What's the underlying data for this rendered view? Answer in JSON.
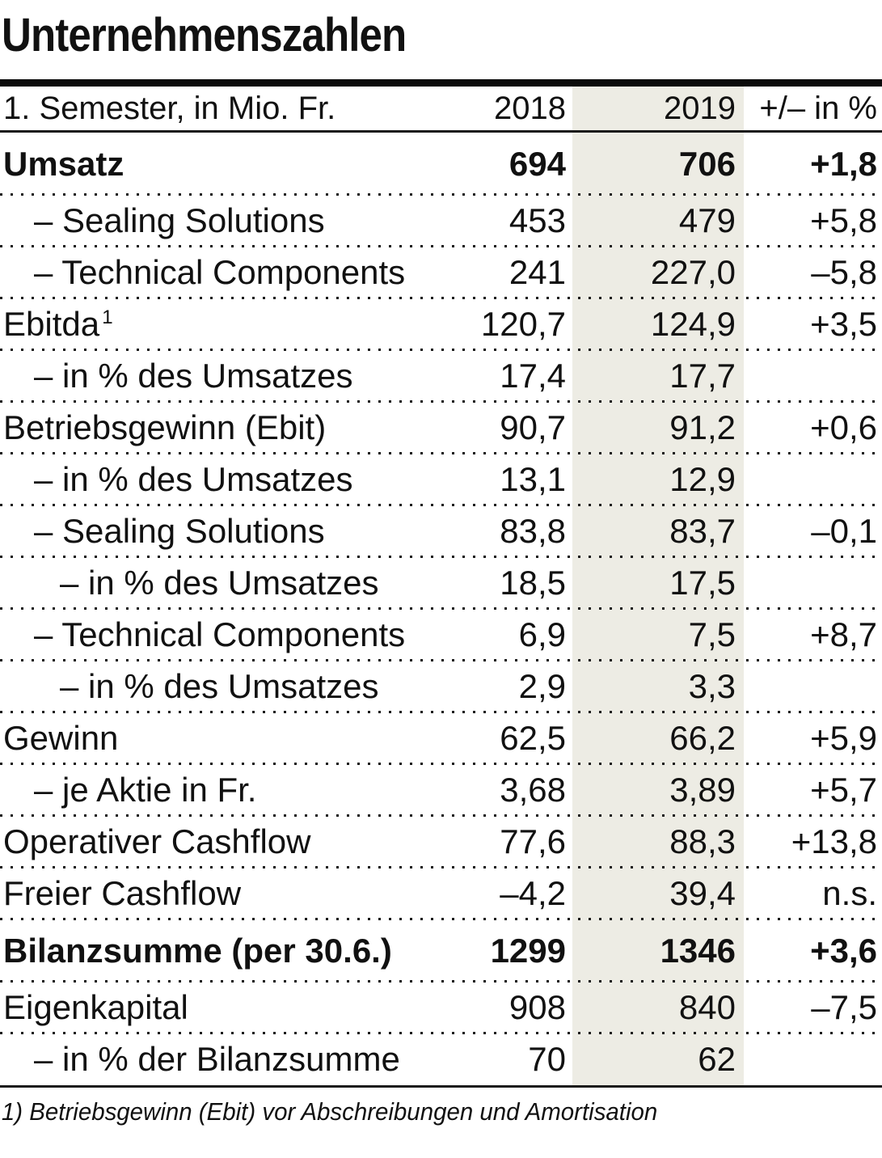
{
  "chart_data": {
    "type": "table",
    "title": "Unternehmenszahlen",
    "header": {
      "label": "1. Semester, in Mio. Fr.",
      "y2018": "2018",
      "y2019": "2019",
      "change": "+/– in %"
    },
    "rows": [
      {
        "label": "Umsatz",
        "indent": 0,
        "bold": true,
        "v2018": "694",
        "v2019": "706",
        "change": "+1,8"
      },
      {
        "label": "– Sealing Solutions",
        "indent": 1,
        "bold": false,
        "v2018": "453",
        "v2019": "479",
        "change": "+5,8"
      },
      {
        "label": "– Technical Components",
        "indent": 1,
        "bold": false,
        "v2018": "241",
        "v2019": "227,0",
        "change": "–5,8"
      },
      {
        "label": "Ebitda",
        "sup": "1",
        "indent": 0,
        "bold": false,
        "v2018": "120,7",
        "v2019": "124,9",
        "change": "+3,5"
      },
      {
        "label": "– in % des Umsatzes",
        "indent": 1,
        "bold": false,
        "v2018": "17,4",
        "v2019": "17,7",
        "change": ""
      },
      {
        "label": "Betriebsgewinn (Ebit)",
        "indent": 0,
        "bold": false,
        "v2018": "90,7",
        "v2019": "91,2",
        "change": "+0,6"
      },
      {
        "label": "– in % des Umsatzes",
        "indent": 1,
        "bold": false,
        "v2018": "13,1",
        "v2019": "12,9",
        "change": ""
      },
      {
        "label": "– Sealing Solutions",
        "indent": 1,
        "bold": false,
        "v2018": "83,8",
        "v2019": "83,7",
        "change": "–0,1"
      },
      {
        "label": "– in % des Umsatzes",
        "indent": 2,
        "bold": false,
        "v2018": "18,5",
        "v2019": "17,5",
        "change": ""
      },
      {
        "label": "– Technical Components",
        "indent": 1,
        "bold": false,
        "v2018": "6,9",
        "v2019": "7,5",
        "change": "+8,7"
      },
      {
        "label": "– in % des Umsatzes",
        "indent": 2,
        "bold": false,
        "v2018": "2,9",
        "v2019": "3,3",
        "change": ""
      },
      {
        "label": "Gewinn",
        "indent": 0,
        "bold": false,
        "v2018": "62,5",
        "v2019": "66,2",
        "change": "+5,9"
      },
      {
        "label": "– je Aktie in Fr.",
        "indent": 1,
        "bold": false,
        "v2018": "3,68",
        "v2019": "3,89",
        "change": "+5,7"
      },
      {
        "label": "Operativer Cashflow",
        "indent": 0,
        "bold": false,
        "v2018": "77,6",
        "v2019": "88,3",
        "change": "+13,8"
      },
      {
        "label": "Freier Cashflow",
        "indent": 0,
        "bold": false,
        "v2018": "–4,2",
        "v2019": "39,4",
        "change": "n.s."
      },
      {
        "label": "Bilanzsumme (per 30.6.)",
        "indent": 0,
        "bold": true,
        "v2018": "1299",
        "v2019": "1346",
        "change": "+3,6"
      },
      {
        "label": "Eigenkapital",
        "indent": 0,
        "bold": false,
        "v2018": "908",
        "v2019": "840",
        "change": "–7,5"
      },
      {
        "label": "– in % der Bilanzsumme",
        "indent": 1,
        "bold": false,
        "v2018": "70",
        "v2019": "62",
        "change": ""
      }
    ],
    "footnote": "1) Betriebsgewinn (Ebit) vor Abschreibungen und Amortisation",
    "layout": {
      "band_color": "#EDECE4",
      "text_color": "#111111",
      "highlighted_column": "2019",
      "grid": "dotted-row-separators"
    }
  }
}
